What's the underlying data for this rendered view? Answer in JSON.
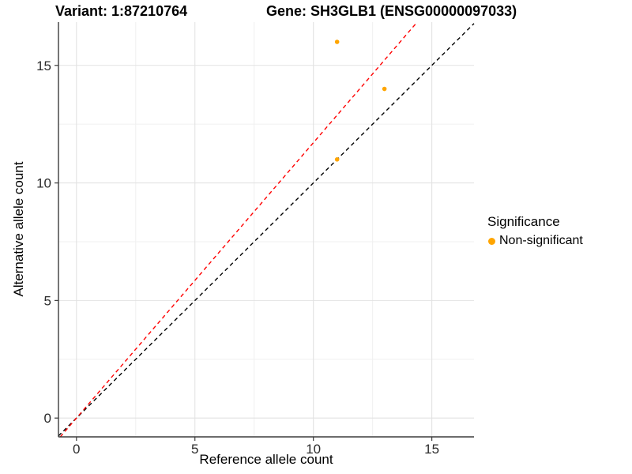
{
  "chart_data": {
    "type": "scatter",
    "title_left": "Variant: 1:87210764",
    "title_right": "Gene: SH3GLB1 (ENSG00000097033)",
    "xlabel": "Reference allele count",
    "ylabel": "Alternative allele count",
    "xlim": [
      -0.76,
      16.78
    ],
    "ylim": [
      -0.8,
      16.84
    ],
    "x_major_ticks": [
      0,
      5,
      10,
      15
    ],
    "y_major_ticks": [
      0,
      5,
      10,
      15
    ],
    "x_minor_ticks": [
      2.5,
      7.5,
      12.5
    ],
    "y_minor_ticks": [
      2.5,
      7.5,
      12.5
    ],
    "grid": true,
    "colors": {
      "major_grid": "#e2e2e2",
      "minor_grid": "#f0f0f0",
      "axis_line": "#3c3c3c",
      "tick_label": "#2b2b2b"
    },
    "series": [
      {
        "name": "Non-significant",
        "color": "#FFA500",
        "points": [
          {
            "x": 11,
            "y": 16
          },
          {
            "x": 13,
            "y": 14
          },
          {
            "x": 11,
            "y": 11
          }
        ]
      }
    ],
    "reference_lines": [
      {
        "name": "identity-line",
        "slope": 1,
        "intercept": 0,
        "color": "#000000",
        "dash": "dashed"
      },
      {
        "name": "expected-ratio-line",
        "slope": 1.171,
        "intercept": 0,
        "color": "#FF0000",
        "dash": "dashed"
      }
    ],
    "legend": {
      "title": "Significance",
      "position": "right",
      "items": [
        {
          "label": "Non-significant",
          "color": "#FFA500"
        }
      ]
    }
  }
}
